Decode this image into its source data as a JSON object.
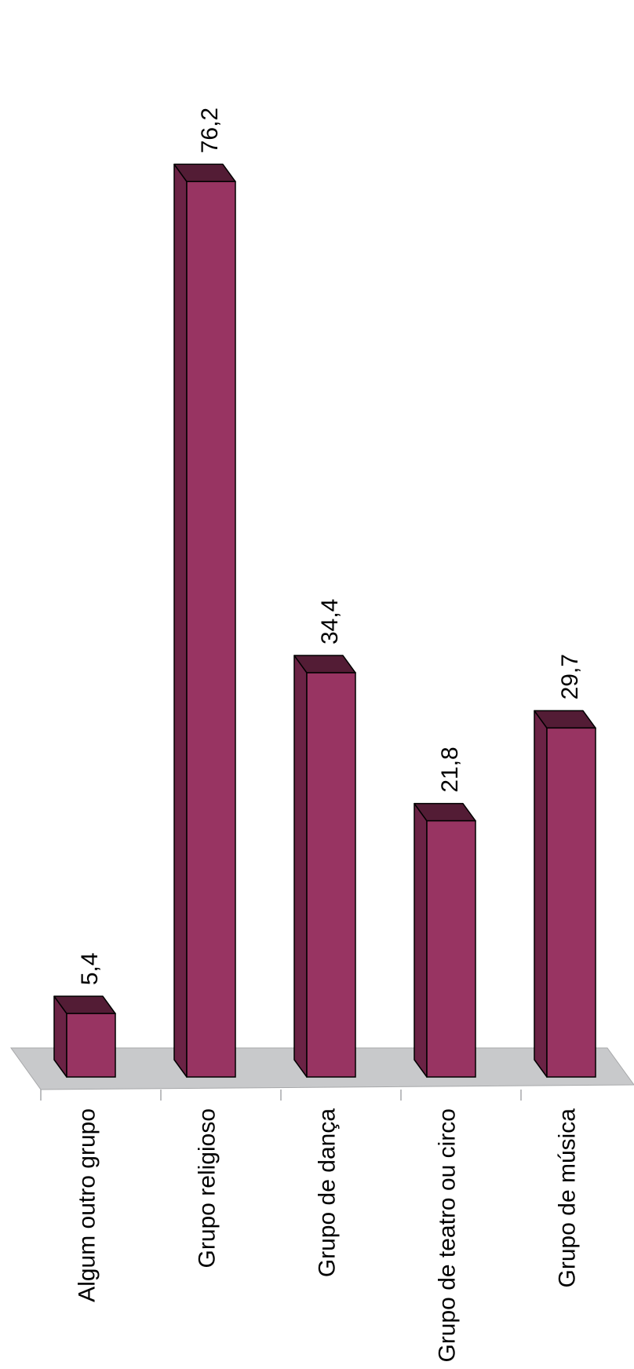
{
  "chart_data": {
    "type": "bar",
    "categories": [
      "Algum outro grupo",
      "Grupo religioso",
      "Grupo de dança",
      "Grupo de teatro ou circo",
      "Grupo de música"
    ],
    "values": [
      5.4,
      76.2,
      34.4,
      21.8,
      29.7
    ],
    "value_labels": [
      "5,4",
      "76,2",
      "34,4",
      "21,8",
      "29,7"
    ],
    "title": "",
    "xlabel": "",
    "ylabel": "",
    "ylim": [
      0,
      76.2
    ],
    "grid": false,
    "legend": "none",
    "rotation": "rotated 90 degrees clockwise",
    "style": "3d-column",
    "colors": {
      "bar_front": "#983462",
      "bar_side": "#6b2345",
      "bar_top": "#531c35",
      "floor": "#c8c9cb",
      "outline": "#000000"
    }
  }
}
